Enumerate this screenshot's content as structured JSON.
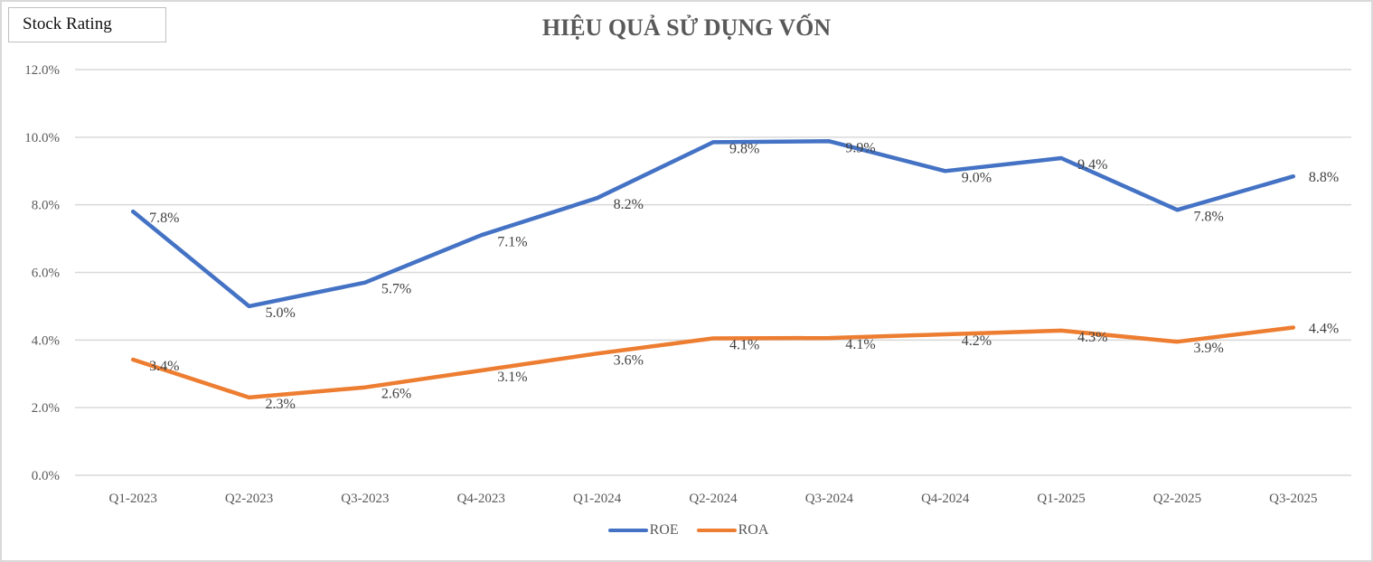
{
  "badge": "Stock Rating",
  "chart_data": {
    "type": "line",
    "title": "HIỆU QUẢ SỬ DỤNG VỐN",
    "xlabel": "",
    "ylabel": "",
    "categories": [
      "Q1-2023",
      "Q2-2023",
      "Q3-2023",
      "Q4-2023",
      "Q1-2024",
      "Q2-2024",
      "Q3-2024",
      "Q4-2024",
      "Q1-2025",
      "Q2-2025",
      "Q3-2025"
    ],
    "ylim": [
      0,
      12
    ],
    "yticks": [
      0,
      2,
      4,
      6,
      8,
      10,
      12
    ],
    "ytick_labels": [
      "0.0%",
      "2.0%",
      "4.0%",
      "6.0%",
      "8.0%",
      "10.0%",
      "12.0%"
    ],
    "grid": true,
    "legend_position": "bottom",
    "series": [
      {
        "name": "ROE",
        "color": "#4472c4",
        "values": [
          7.8,
          5.0,
          5.7,
          7.1,
          8.2,
          9.85,
          9.88,
          9.0,
          9.38,
          7.85,
          8.84
        ],
        "labels": [
          "7.8%",
          "5.0%",
          "5.7%",
          "7.1%",
          "8.2%",
          "9.8%",
          "9.9%",
          "9.0%",
          "9.4%",
          "7.8%",
          "8.8%"
        ]
      },
      {
        "name": "ROA",
        "color": "#ed7d31",
        "values": [
          3.42,
          2.3,
          2.6,
          3.1,
          3.6,
          4.05,
          4.06,
          4.17,
          4.28,
          3.95,
          4.37
        ],
        "labels": [
          "3.4%",
          "2.3%",
          "2.6%",
          "3.1%",
          "3.6%",
          "4.1%",
          "4.1%",
          "4.2%",
          "4.3%",
          "3.9%",
          "4.4%"
        ]
      }
    ]
  }
}
